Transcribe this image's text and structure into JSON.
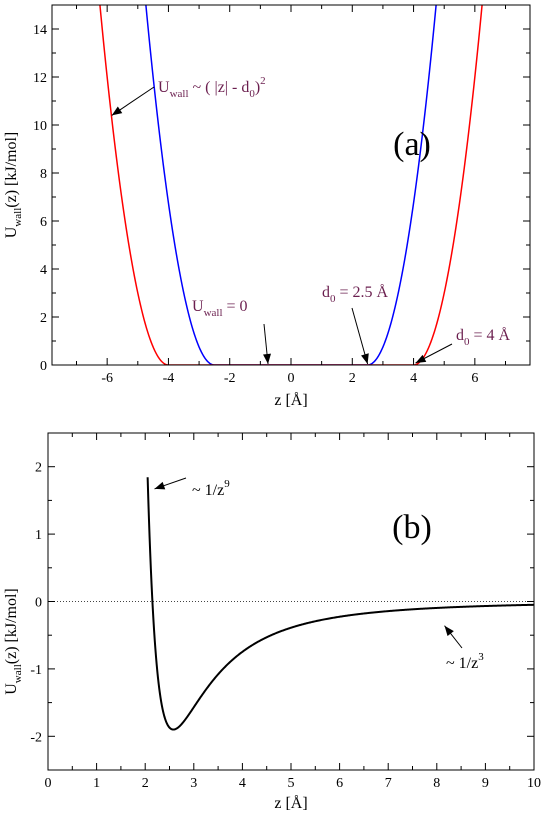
{
  "chart_data": [
    {
      "type": "line",
      "panel_label": "(a)",
      "xlabel": "z [Å]",
      "ylabel": {
        "base": "U",
        "sub": "wall",
        "rest": "(z) [kJ/mol]"
      },
      "xlim": [
        -7.8,
        7.8
      ],
      "ylim": [
        0,
        15
      ],
      "xticks": [
        -6,
        -4,
        -2,
        0,
        2,
        4,
        6
      ],
      "xtick_labels": [
        "-6",
        "-4",
        "-2",
        "0",
        "2",
        "4",
        "6"
      ],
      "yticks": [
        0,
        2,
        4,
        6,
        8,
        10,
        12,
        14
      ],
      "ytick_labels": [
        "0",
        "2",
        "4",
        "6",
        "8",
        "10",
        "12",
        "14"
      ],
      "series": [
        {
          "d0": 2.5,
          "k": 3.0,
          "color": "#0000ff"
        },
        {
          "d0": 4.0,
          "k": 3.0,
          "color": "#ff0000"
        }
      ],
      "annotations": [
        {
          "text": "U",
          "sub": "wall",
          "after": " ~ ( |z| - d",
          "sub2": "0",
          "after2": ")",
          "sup": "2",
          "arrow_to": [
            -5.85,
            10.4
          ]
        },
        {
          "text": "U",
          "sub": "wall",
          "after": " = 0",
          "arrow_to": [
            -0.75,
            0.0
          ]
        },
        {
          "text": "d",
          "sub": "0",
          "after": " = 2.5 Å",
          "arrow_to": [
            2.5,
            0.0
          ]
        },
        {
          "text": "d",
          "sub": "0",
          "after": " = 4 Å",
          "arrow_to": [
            4.0,
            0.0
          ]
        }
      ]
    },
    {
      "type": "line",
      "panel_label": "(b)",
      "xlabel": "z  [Å]",
      "ylabel": {
        "base": "U",
        "sub": "wall",
        "rest": "(z)  [kJ/mol]"
      },
      "xlim": [
        0,
        10
      ],
      "ylim": [
        -2.5,
        2.5
      ],
      "xticks": [
        0,
        1,
        2,
        3,
        4,
        5,
        6,
        7,
        8,
        9,
        10
      ],
      "xtick_labels": [
        "0",
        "1",
        "2",
        "3",
        "4",
        "5",
        "6",
        "7",
        "8",
        "9",
        "10"
      ],
      "yticks": [
        -2,
        -1,
        0,
        1,
        2
      ],
      "ytick_labels": [
        "-2",
        "-1",
        "0",
        "1",
        "2"
      ],
      "zero_line": true,
      "series": [
        {
          "epsilon": 1.9,
          "z0": 2.58,
          "color": "#000000"
        }
      ],
      "annotations": [
        {
          "text": "~ 1/z",
          "sup": "9",
          "arrow_to": [
            2.15,
            1.7
          ]
        },
        {
          "text": "~ 1/z",
          "sup": "3",
          "arrow_to": [
            8.2,
            -0.3
          ]
        }
      ]
    }
  ]
}
